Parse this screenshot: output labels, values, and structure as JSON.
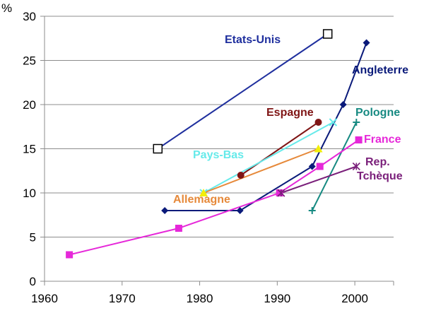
{
  "chart_data": {
    "type": "line",
    "title": "",
    "xlabel": "",
    "ylabel": "%",
    "xlim": [
      1960,
      2005
    ],
    "ylim": [
      0,
      30
    ],
    "x_ticks": [
      "1960",
      "1970",
      "1980",
      "1990",
      "2000"
    ],
    "y_ticks": [
      "0",
      "5",
      "10",
      "15",
      "20",
      "25",
      "30"
    ],
    "grid": "horizontal",
    "legend": "none (direct labels)",
    "series": [
      {
        "name": "Etats-Unis",
        "color": "#1f2f9e",
        "marker": "open-square",
        "points": [
          [
            1974.6,
            15
          ],
          [
            1996.5,
            28
          ]
        ]
      },
      {
        "name": "Angleterre",
        "color": "#0a1a7a",
        "marker": "diamond",
        "points": [
          [
            1975.5,
            8
          ],
          [
            1985.2,
            8
          ],
          [
            1994.5,
            13
          ],
          [
            1998.5,
            20
          ],
          [
            2001.5,
            27
          ]
        ]
      },
      {
        "name": "Espagne",
        "color": "#7f1515",
        "marker": "circle",
        "points": [
          [
            1985.3,
            12
          ],
          [
            1995.3,
            18
          ]
        ]
      },
      {
        "name": "Pays-Bas",
        "color": "#66eaea",
        "marker": "x",
        "points": [
          [
            1980.5,
            10
          ],
          [
            1997.2,
            18
          ]
        ]
      },
      {
        "name": "Allemagne",
        "color": "#e6893a",
        "marker": "triangle",
        "points": [
          [
            1980.5,
            10
          ],
          [
            1995.3,
            15
          ]
        ]
      },
      {
        "name": "Pologne",
        "color": "#178a82",
        "marker": "plus",
        "points": [
          [
            1994.5,
            8
          ],
          [
            2000.2,
            18
          ]
        ]
      },
      {
        "name": "France",
        "color": "#e628d9",
        "marker": "square",
        "points": [
          [
            1963.2,
            3
          ],
          [
            1977.3,
            6
          ],
          [
            1990.3,
            10
          ],
          [
            1995.5,
            13
          ],
          [
            2000.5,
            16
          ]
        ]
      },
      {
        "name": "Rep.\nTchèque",
        "color": "#7a1f7a",
        "marker": "asterisk",
        "points": [
          [
            1990.5,
            10
          ],
          [
            2000.2,
            13
          ]
        ]
      }
    ]
  }
}
